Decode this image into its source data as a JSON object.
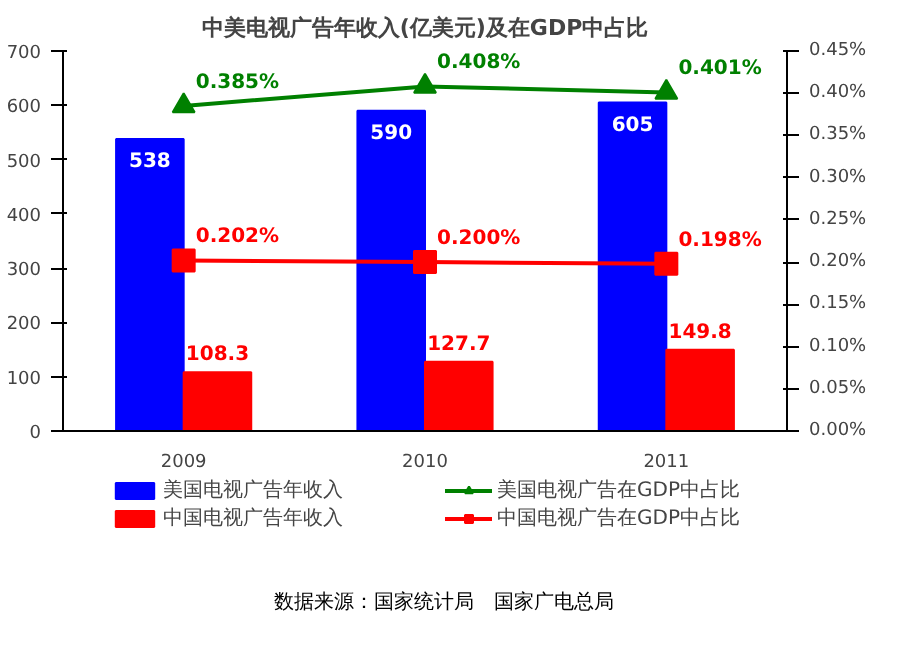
{
  "chart_data": {
    "type": "bar",
    "title": "中美电视广告年收入(亿美元)及在GDP中占比",
    "categories": [
      "2009",
      "2010",
      "2011"
    ],
    "series": [
      {
        "name": "美国电视广告年收入",
        "color": "#0000ff",
        "values": [
          538,
          590,
          605
        ],
        "value_labels": [
          "538",
          "590",
          "605"
        ]
      },
      {
        "name": "中国电视广告年收入",
        "color": "#ff0000",
        "values": [
          108.3,
          127.7,
          149.8
        ],
        "value_labels": [
          "108.3",
          "127.7",
          "149.8"
        ]
      },
      {
        "name": "美国电视广告在GDP中占比",
        "type": "line",
        "axis": "y2",
        "marker": "triangle",
        "color": "#008000",
        "values": [
          0.385,
          0.408,
          0.401
        ],
        "value_labels": [
          "0.385%",
          "0.408%",
          "0.401%"
        ]
      },
      {
        "name": "中国电视广告在GDP中占比",
        "type": "line",
        "axis": "y2",
        "marker": "square",
        "color": "#ff0000",
        "values": [
          0.202,
          0.2,
          0.198
        ],
        "value_labels": [
          "0.202%",
          "0.200%",
          "0.198%"
        ]
      }
    ],
    "ylim": [
      0,
      700
    ],
    "yticks": [
      0,
      100,
      200,
      300,
      400,
      500,
      600,
      700
    ],
    "y2lim": [
      0,
      0.45
    ],
    "y2ticks": [
      {
        "value": 0,
        "label": "0.00%"
      },
      {
        "value": 0.05,
        "label": "0.05%"
      },
      {
        "value": 0.1,
        "label": "0.10%"
      },
      {
        "value": 0.15,
        "label": "0.15%"
      },
      {
        "value": 0.2,
        "label": "0.20%"
      },
      {
        "value": 0.25,
        "label": "0.25%"
      },
      {
        "value": 0.3,
        "label": "0.30%"
      },
      {
        "value": 0.35,
        "label": "0.35%"
      },
      {
        "value": 0.4,
        "label": "0.40%"
      },
      {
        "value": 0.45,
        "label": "0.45%"
      }
    ],
    "grid": false,
    "legend": "bottom",
    "annotations": [
      "数据来源：国家统计局　国家广电总局"
    ]
  }
}
